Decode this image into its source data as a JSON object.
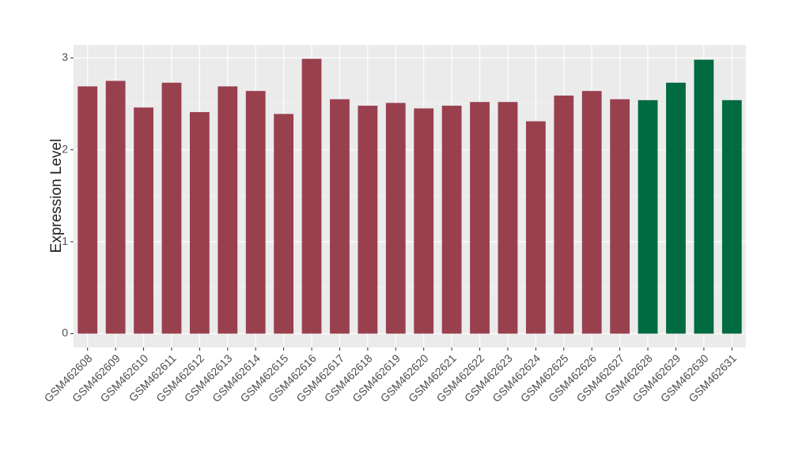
{
  "chart_data": {
    "type": "bar",
    "y_label": "Expression Level",
    "categories": [
      "GSM462608",
      "GSM462609",
      "GSM462610",
      "GSM462611",
      "GSM462612",
      "GSM462613",
      "GSM462614",
      "GSM462615",
      "GSM462616",
      "GSM462617",
      "GSM462618",
      "GSM462619",
      "GSM462620",
      "GSM462621",
      "GSM462622",
      "GSM462623",
      "GSM462624",
      "GSM462625",
      "GSM462626",
      "GSM462627",
      "GSM462628",
      "GSM462629",
      "GSM462630",
      "GSM462631"
    ],
    "values": [
      2.69,
      2.75,
      2.46,
      2.73,
      2.41,
      2.69,
      2.64,
      2.39,
      2.99,
      2.55,
      2.48,
      2.51,
      2.45,
      2.48,
      2.52,
      2.52,
      2.31,
      2.59,
      2.64,
      2.55,
      2.54,
      2.73,
      2.98,
      2.54
    ],
    "colors": [
      "#99404f",
      "#99404f",
      "#99404f",
      "#99404f",
      "#99404f",
      "#99404f",
      "#99404f",
      "#99404f",
      "#99404f",
      "#99404f",
      "#99404f",
      "#99404f",
      "#99404f",
      "#99404f",
      "#99404f",
      "#99404f",
      "#99404f",
      "#99404f",
      "#99404f",
      "#99404f",
      "#006a40",
      "#006a40",
      "#006a40",
      "#006a40"
    ],
    "ylim": [
      -0.15,
      3.14
    ],
    "yticks": [
      0,
      1,
      2,
      3
    ],
    "grid": true
  }
}
